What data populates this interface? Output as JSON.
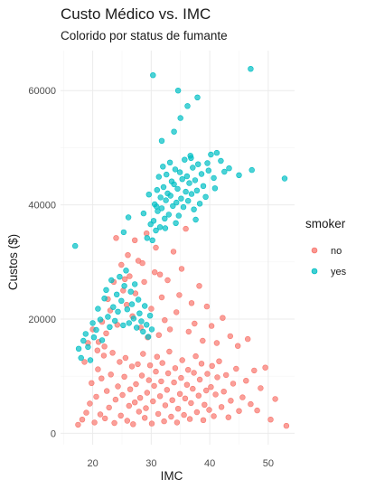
{
  "chart_data": {
    "type": "scatter",
    "title": "Custo Médico vs. IMC",
    "subtitle": "Colorido por status de fumante",
    "xlabel": "IMC",
    "ylabel": "Custos ($)",
    "xlim": [
      14.5,
      54.5
    ],
    "ylim": [
      -2000,
      67000
    ],
    "x_ticks": [
      20,
      30,
      40,
      50
    ],
    "y_ticks": [
      0,
      20000,
      40000,
      60000
    ],
    "grid": true,
    "legend": {
      "title": "smoker",
      "position": "right",
      "entries": [
        "no",
        "yes"
      ]
    },
    "colors": {
      "no": "#F8766D",
      "yes": "#00BFC4"
    },
    "series": [
      {
        "name": "no",
        "points": [
          [
            17.5,
            1500
          ],
          [
            18.2,
            2400
          ],
          [
            18.9,
            3600
          ],
          [
            19.5,
            5200
          ],
          [
            19.8,
            8800
          ],
          [
            20.3,
            1900
          ],
          [
            20.6,
            6400
          ],
          [
            20.9,
            11200
          ],
          [
            21.3,
            3300
          ],
          [
            21.5,
            9600
          ],
          [
            21.9,
            13600
          ],
          [
            22.1,
            2600
          ],
          [
            22.4,
            7400
          ],
          [
            22.8,
            4500
          ],
          [
            23.1,
            10300
          ],
          [
            23.4,
            14100
          ],
          [
            23.7,
            1800
          ],
          [
            23.9,
            5900
          ],
          [
            24.3,
            8200
          ],
          [
            24.6,
            12500
          ],
          [
            24.8,
            3100
          ],
          [
            25.1,
            6700
          ],
          [
            25.4,
            9900
          ],
          [
            25.6,
            13200
          ],
          [
            25.9,
            2200
          ],
          [
            26.2,
            4800
          ],
          [
            26.4,
            7700
          ],
          [
            26.7,
            11700
          ],
          [
            26.9,
            1600
          ],
          [
            27.2,
            5400
          ],
          [
            27.4,
            8600
          ],
          [
            27.7,
            12100
          ],
          [
            27.9,
            3800
          ],
          [
            28.1,
            6200
          ],
          [
            28.4,
            10100
          ],
          [
            28.6,
            13900
          ],
          [
            28.9,
            2700
          ],
          [
            29.1,
            4400
          ],
          [
            29.3,
            7100
          ],
          [
            29.6,
            9300
          ],
          [
            29.8,
            11900
          ],
          [
            30.1,
            1700
          ],
          [
            30.3,
            5600
          ],
          [
            30.5,
            8300
          ],
          [
            30.8,
            10800
          ],
          [
            31.0,
            13400
          ],
          [
            31.2,
            3400
          ],
          [
            31.5,
            6500
          ],
          [
            31.7,
            9100
          ],
          [
            31.9,
            12300
          ],
          [
            32.2,
            2100
          ],
          [
            32.4,
            4900
          ],
          [
            32.7,
            7600
          ],
          [
            32.9,
            10500
          ],
          [
            33.1,
            14300
          ],
          [
            33.4,
            2900
          ],
          [
            33.6,
            5800
          ],
          [
            33.9,
            8900
          ],
          [
            34.1,
            11400
          ],
          [
            34.4,
            1900
          ],
          [
            34.6,
            4300
          ],
          [
            34.9,
            6900
          ],
          [
            35.1,
            9700
          ],
          [
            35.3,
            12800
          ],
          [
            35.6,
            3200
          ],
          [
            35.8,
            6100
          ],
          [
            36.1,
            8500
          ],
          [
            36.3,
            11100
          ],
          [
            36.6,
            2500
          ],
          [
            36.8,
            5300
          ],
          [
            37.1,
            7800
          ],
          [
            37.3,
            10600
          ],
          [
            37.6,
            13500
          ],
          [
            37.8,
            3700
          ],
          [
            38.1,
            6600
          ],
          [
            38.3,
            9400
          ],
          [
            38.6,
            12200
          ],
          [
            38.9,
            2300
          ],
          [
            39.1,
            5000
          ],
          [
            39.4,
            7500
          ],
          [
            39.6,
            10400
          ],
          [
            39.9,
            4100
          ],
          [
            40.2,
            8100
          ],
          [
            40.4,
            11800
          ],
          [
            40.7,
            3000
          ],
          [
            41.0,
            6800
          ],
          [
            41.3,
            9800
          ],
          [
            41.6,
            12600
          ],
          [
            42.0,
            4600
          ],
          [
            42.4,
            7300
          ],
          [
            42.8,
            10200
          ],
          [
            43.2,
            2800
          ],
          [
            43.6,
            5700
          ],
          [
            44.0,
            8700
          ],
          [
            44.5,
            11300
          ],
          [
            45.0,
            3900
          ],
          [
            45.6,
            6300
          ],
          [
            46.2,
            9200
          ],
          [
            47.0,
            5100
          ],
          [
            47.6,
            11000
          ],
          [
            48.1,
            4000
          ],
          [
            48.7,
            7900
          ],
          [
            49.5,
            11500
          ],
          [
            50.4,
            2400
          ],
          [
            51.2,
            6000
          ],
          [
            53.1,
            1300
          ],
          [
            21.0,
            16000
          ],
          [
            21.6,
            19500
          ],
          [
            22.3,
            17500
          ],
          [
            23.0,
            21500
          ],
          [
            22.6,
            23500
          ],
          [
            23.6,
            26500
          ],
          [
            24.2,
            19000
          ],
          [
            24.9,
            29500
          ],
          [
            25.2,
            25000
          ],
          [
            25.8,
            22500
          ],
          [
            26.3,
            27500
          ],
          [
            26.8,
            20500
          ],
          [
            27.3,
            24500
          ],
          [
            27.8,
            30200
          ],
          [
            28.2,
            18500
          ],
          [
            28.8,
            26500
          ],
          [
            29.4,
            16800
          ],
          [
            30.0,
            21800
          ],
          [
            30.6,
            28200
          ],
          [
            31.3,
            17200
          ],
          [
            31.8,
            23800
          ],
          [
            32.3,
            19800
          ],
          [
            32.8,
            26800
          ],
          [
            33.2,
            18200
          ],
          [
            33.8,
            31800
          ],
          [
            34.3,
            21200
          ],
          [
            34.8,
            24200
          ],
          [
            35.2,
            28800
          ],
          [
            35.9,
            35800
          ],
          [
            36.4,
            17800
          ],
          [
            36.9,
            22800
          ],
          [
            37.4,
            19200
          ],
          [
            38.2,
            25800
          ],
          [
            38.8,
            16200
          ],
          [
            39.5,
            22200
          ],
          [
            40.3,
            18800
          ],
          [
            41.2,
            15800
          ],
          [
            42.2,
            20200
          ],
          [
            43.5,
            17000
          ],
          [
            44.8,
            15300
          ],
          [
            46.5,
            16500
          ],
          [
            28.5,
            29800
          ],
          [
            27.2,
            33800
          ],
          [
            29.2,
            35000
          ],
          [
            26.0,
            31200
          ],
          [
            30.8,
            32500
          ],
          [
            24.0,
            34200
          ],
          [
            25.5,
            27000
          ],
          [
            31.5,
            27800
          ],
          [
            19.2,
            15800
          ],
          [
            20.0,
            18200
          ],
          [
            18.6,
            12500
          ],
          [
            20.8,
            14500
          ],
          [
            22.0,
            15200
          ]
        ]
      },
      {
        "name": "yes",
        "points": [
          [
            17.0,
            32800
          ],
          [
            17.6,
            14800
          ],
          [
            18.0,
            13200
          ],
          [
            18.4,
            16200
          ],
          [
            18.8,
            17400
          ],
          [
            19.2,
            15100
          ],
          [
            19.6,
            12800
          ],
          [
            20.0,
            19300
          ],
          [
            20.2,
            16800
          ],
          [
            20.6,
            18100
          ],
          [
            20.9,
            21800
          ],
          [
            21.3,
            19900
          ],
          [
            21.6,
            16300
          ],
          [
            22.0,
            23600
          ],
          [
            22.3,
            25100
          ],
          [
            22.6,
            20400
          ],
          [
            22.9,
            18600
          ],
          [
            23.2,
            26800
          ],
          [
            23.5,
            22100
          ],
          [
            23.8,
            19700
          ],
          [
            24.1,
            24300
          ],
          [
            24.3,
            21300
          ],
          [
            24.6,
            27400
          ],
          [
            24.9,
            23200
          ],
          [
            25.2,
            18900
          ],
          [
            25.4,
            25800
          ],
          [
            25.7,
            28500
          ],
          [
            25.9,
            21700
          ],
          [
            26.2,
            19300
          ],
          [
            26.5,
            24800
          ],
          [
            26.7,
            22600
          ],
          [
            27.0,
            20100
          ],
          [
            27.2,
            26100
          ],
          [
            27.5,
            18500
          ],
          [
            27.8,
            23400
          ],
          [
            28.0,
            21000
          ],
          [
            28.3,
            19600
          ],
          [
            28.6,
            17800
          ],
          [
            28.9,
            22300
          ],
          [
            29.2,
            19000
          ],
          [
            29.5,
            16900
          ],
          [
            29.8,
            20600
          ],
          [
            30.1,
            18200
          ],
          [
            25.3,
            35200
          ],
          [
            26.1,
            37800
          ],
          [
            28.7,
            38500
          ],
          [
            29.3,
            34200
          ],
          [
            29.9,
            36600
          ],
          [
            30.2,
            33800
          ],
          [
            30.4,
            37200
          ],
          [
            30.6,
            40100
          ],
          [
            30.8,
            35500
          ],
          [
            31.0,
            42600
          ],
          [
            31.1,
            38900
          ],
          [
            31.3,
            44900
          ],
          [
            31.5,
            36100
          ],
          [
            31.6,
            41300
          ],
          [
            31.8,
            39400
          ],
          [
            32.0,
            46700
          ],
          [
            32.1,
            43100
          ],
          [
            32.3,
            37600
          ],
          [
            32.5,
            40800
          ],
          [
            32.6,
            45300
          ],
          [
            32.8,
            42000
          ],
          [
            33.0,
            38300
          ],
          [
            33.2,
            47400
          ],
          [
            33.3,
            41600
          ],
          [
            33.5,
            44100
          ],
          [
            33.7,
            39800
          ],
          [
            33.9,
            43600
          ],
          [
            34.1,
            46200
          ],
          [
            34.3,
            40400
          ],
          [
            34.5,
            42800
          ],
          [
            34.7,
            38100
          ],
          [
            34.9,
            45700
          ],
          [
            35.1,
            41100
          ],
          [
            35.3,
            44500
          ],
          [
            35.5,
            39600
          ],
          [
            35.7,
            47900
          ],
          [
            35.9,
            42300
          ],
          [
            36.1,
            45000
          ],
          [
            36.3,
            40700
          ],
          [
            36.5,
            43800
          ],
          [
            36.7,
            48600
          ],
          [
            36.9,
            41900
          ],
          [
            37.1,
            46500
          ],
          [
            37.3,
            39200
          ],
          [
            37.5,
            44300
          ],
          [
            37.8,
            42500
          ],
          [
            38.0,
            47100
          ],
          [
            38.3,
            40200
          ],
          [
            38.6,
            45400
          ],
          [
            38.9,
            43300
          ],
          [
            39.3,
            41400
          ],
          [
            39.8,
            46000
          ],
          [
            40.2,
            48800
          ],
          [
            40.7,
            44700
          ],
          [
            41.2,
            49100
          ],
          [
            41.9,
            47700
          ],
          [
            42.5,
            45800
          ],
          [
            43.3,
            46400
          ],
          [
            45.0,
            45200
          ],
          [
            47.2,
            46100
          ],
          [
            52.8,
            44600
          ],
          [
            31.8,
            51200
          ],
          [
            33.9,
            52800
          ],
          [
            35.0,
            55200
          ],
          [
            36.2,
            57300
          ],
          [
            30.3,
            62700
          ],
          [
            34.6,
            60000
          ],
          [
            37.9,
            58800
          ],
          [
            47.0,
            63800
          ],
          [
            36.8,
            48200
          ],
          [
            39.6,
            47300
          ],
          [
            30.9,
            39700
          ],
          [
            32.4,
            35900
          ],
          [
            29.6,
            41800
          ],
          [
            40.9,
            42900
          ],
          [
            37.6,
            37400
          ],
          [
            34.2,
            36800
          ]
        ]
      }
    ]
  }
}
